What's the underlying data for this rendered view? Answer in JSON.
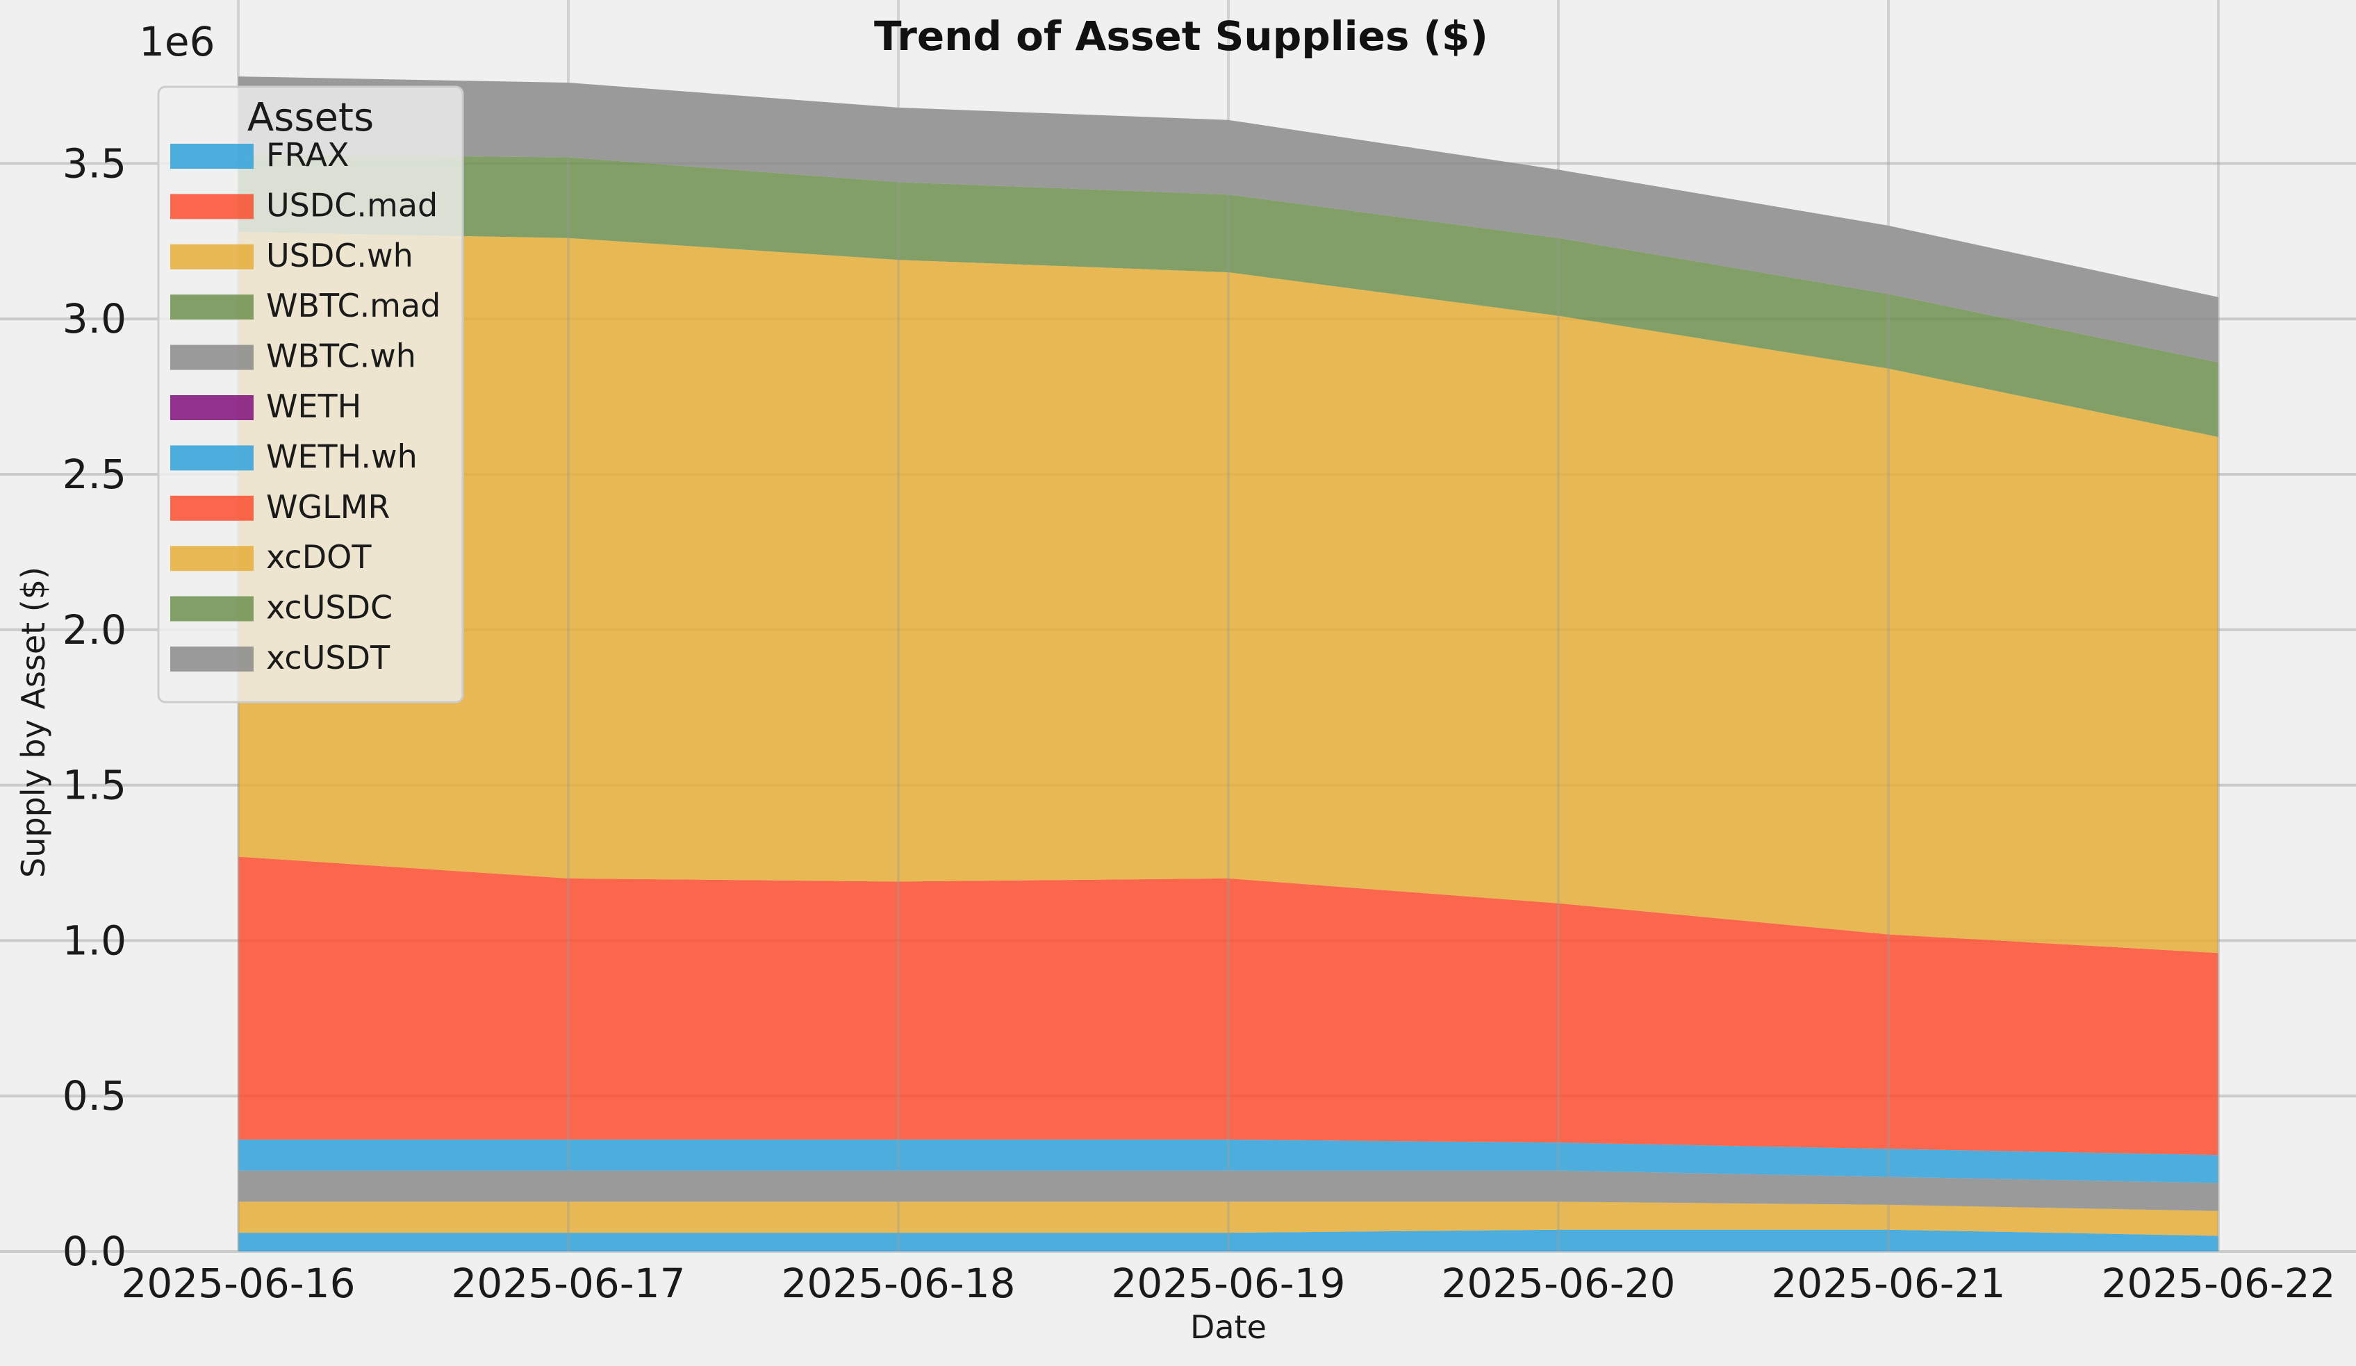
{
  "chart_data": {
    "type": "area",
    "stacked": true,
    "title": "Trend of Asset Supplies ($)",
    "xlabel": "Date",
    "ylabel": "Supply by Asset ($)",
    "y_multiplier_label": "1e6",
    "ylim": [
      0,
      3.95
    ],
    "y_ticks": [
      "0.0",
      "0.5",
      "1.0",
      "1.5",
      "2.0",
      "2.5",
      "3.0",
      "3.5"
    ],
    "x": [
      "2025-06-16",
      "2025-06-17",
      "2025-06-18",
      "2025-06-19",
      "2025-06-20",
      "2025-06-21",
      "2025-06-22"
    ],
    "grid": true,
    "legend": {
      "title": "Assets",
      "position": "top-left"
    },
    "series": [
      {
        "name": "FRAX",
        "color": "#30a2da",
        "values": [
          0.06,
          0.06,
          0.06,
          0.06,
          0.07,
          0.07,
          0.05
        ]
      },
      {
        "name": "USDC.mad",
        "color": "#fc4f30",
        "values": [
          0,
          0,
          0,
          0,
          0,
          0,
          0
        ]
      },
      {
        "name": "USDC.wh",
        "color": "#e5ae38",
        "values": [
          0.1,
          0.1,
          0.1,
          0.1,
          0.09,
          0.08,
          0.08
        ]
      },
      {
        "name": "WBTC.mad",
        "color": "#6d904f",
        "values": [
          0,
          0,
          0,
          0,
          0,
          0,
          0
        ]
      },
      {
        "name": "WBTC.wh",
        "color": "#8b8b8b",
        "values": [
          0.1,
          0.1,
          0.1,
          0.1,
          0.1,
          0.09,
          0.09
        ]
      },
      {
        "name": "WETH",
        "color": "#810f7c",
        "values": [
          0,
          0,
          0,
          0,
          0,
          0,
          0
        ]
      },
      {
        "name": "WETH.wh",
        "color": "#30a2da",
        "values": [
          0.1,
          0.1,
          0.1,
          0.1,
          0.09,
          0.09,
          0.09
        ]
      },
      {
        "name": "WGLMR",
        "color": "#fc4f30",
        "values": [
          0.91,
          0.84,
          0.83,
          0.84,
          0.77,
          0.69,
          0.65
        ]
      },
      {
        "name": "xcDOT",
        "color": "#e5ae38",
        "values": [
          2.01,
          2.06,
          2.0,
          1.95,
          1.89,
          1.82,
          1.66
        ]
      },
      {
        "name": "xcUSDC",
        "color": "#6d904f",
        "values": [
          0.25,
          0.26,
          0.25,
          0.25,
          0.25,
          0.24,
          0.24
        ]
      },
      {
        "name": "xcUSDT",
        "color": "#8b8b8b",
        "values": [
          0.25,
          0.24,
          0.24,
          0.24,
          0.22,
          0.22,
          0.21
        ]
      }
    ]
  }
}
